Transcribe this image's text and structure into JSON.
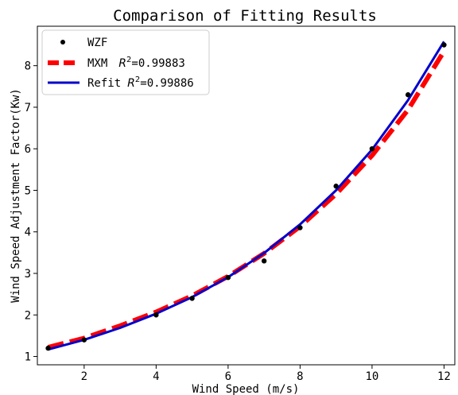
{
  "chart_data": {
    "type": "line",
    "title": "Comparison of Fitting Results",
    "xlabel": "Wind Speed (m/s)",
    "ylabel": "Wind Speed Adjustment Factor(Kw)",
    "xlim": [
      0.7,
      12.3
    ],
    "ylim": [
      0.8,
      8.95
    ],
    "xticks": [
      2,
      4,
      6,
      8,
      10,
      12
    ],
    "yticks": [
      1,
      2,
      3,
      4,
      5,
      6,
      7,
      8
    ],
    "grid": false,
    "legend_position": "upper-left",
    "series": [
      {
        "name": "WZF",
        "kind": "scatter",
        "color": "#000000",
        "x": [
          1,
          2,
          4,
          5,
          6,
          7,
          8,
          9,
          10,
          11,
          12
        ],
        "y": [
          1.2,
          1.4,
          2.0,
          2.4,
          2.9,
          3.3,
          4.1,
          5.1,
          6.0,
          7.3,
          8.5
        ]
      },
      {
        "name": "MXM",
        "r2_label": "=0.99883",
        "kind": "line",
        "style": "dashed",
        "color": "#ff0000",
        "x": [
          1,
          2,
          3,
          4,
          5,
          6,
          7,
          8,
          9,
          10,
          11,
          12
        ],
        "y": [
          1.22,
          1.44,
          1.74,
          2.07,
          2.46,
          2.93,
          3.48,
          4.13,
          4.91,
          5.84,
          6.94,
          8.35
        ]
      },
      {
        "name": "Refit",
        "r2_label": "=0.99886",
        "kind": "line",
        "style": "solid",
        "color": "#0000cc",
        "x": [
          1,
          2,
          3,
          4,
          5,
          6,
          7,
          8,
          9,
          10,
          11,
          12
        ],
        "y": [
          1.17,
          1.4,
          1.69,
          2.03,
          2.43,
          2.91,
          3.49,
          4.18,
          5.0,
          5.98,
          7.17,
          8.58
        ]
      }
    ]
  }
}
